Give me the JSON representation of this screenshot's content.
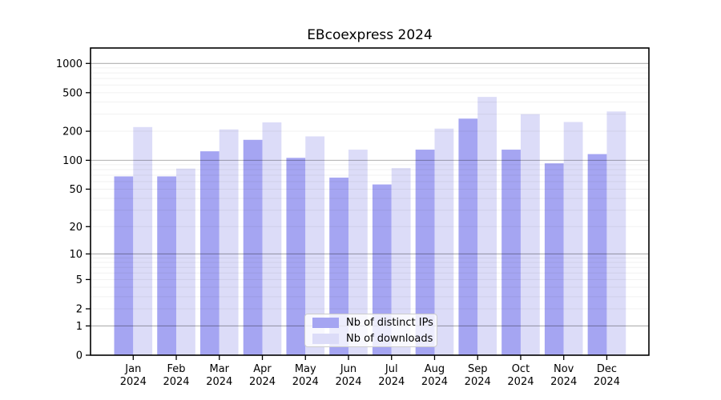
{
  "chart_data": {
    "type": "bar",
    "title": "EBcoexpress 2024",
    "scale": "log1p",
    "categories": [
      "Jan",
      "Feb",
      "Mar",
      "Apr",
      "May",
      "Jun",
      "Jul",
      "Aug",
      "Sep",
      "Oct",
      "Nov",
      "Dec"
    ],
    "year": "2024",
    "series": [
      {
        "name": "Nb of distinct IPs",
        "color": "#a5a5f2",
        "values": [
          68,
          68,
          124,
          163,
          106,
          66,
          56,
          129,
          270,
          129,
          93,
          116
        ]
      },
      {
        "name": "Nb of downloads",
        "color": "#dcdcf8",
        "values": [
          221,
          82,
          209,
          247,
          177,
          129,
          83,
          213,
          452,
          300,
          249,
          320
        ]
      }
    ],
    "yticks": [
      0,
      1,
      2,
      5,
      10,
      20,
      50,
      100,
      200,
      500,
      1000
    ],
    "ylim": [
      0,
      1200
    ],
    "xlabel": "",
    "ylabel": "",
    "grid": {
      "minor_color": "rgba(0,0,0,0.06)",
      "major_color": "rgba(0,0,0,0.31)"
    },
    "legend_position": "lower center",
    "axis_color": "#000000"
  }
}
